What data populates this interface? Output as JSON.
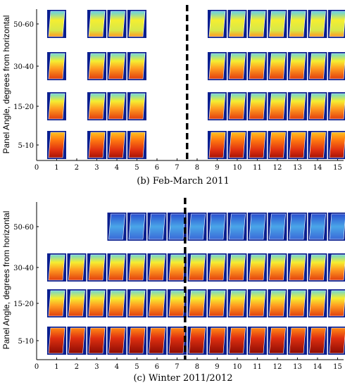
{
  "chart_data": [
    {
      "type": "heatmap",
      "caption": "(b) Feb-March 2011",
      "ylabel": "Panel Angle, degrees from horizontal",
      "rows": [
        "50-60",
        "30-40",
        "15-20",
        "5-10"
      ],
      "x_ticks": [
        0,
        1,
        2,
        3,
        4,
        5,
        6,
        7,
        8,
        9,
        10,
        11,
        12,
        13,
        14,
        15
      ],
      "xlim": [
        0,
        15.3
      ],
      "divider_x": 7.5,
      "columns": [
        {
          "x": 1,
          "rows": [
            "50-60",
            "30-40",
            "15-20",
            "5-10"
          ]
        },
        {
          "x": 3,
          "rows": [
            "50-60",
            "30-40",
            "15-20",
            "5-10"
          ]
        },
        {
          "x": 4,
          "rows": [
            "50-60",
            "30-40",
            "15-20",
            "5-10"
          ]
        },
        {
          "x": 5,
          "rows": [
            "50-60",
            "30-40",
            "15-20",
            "5-10"
          ]
        },
        {
          "x": 9,
          "rows": [
            "50-60",
            "30-40",
            "15-20",
            "5-10"
          ]
        },
        {
          "x": 10,
          "rows": [
            "50-60",
            "30-40",
            "15-20",
            "5-10"
          ]
        },
        {
          "x": 11,
          "rows": [
            "50-60",
            "30-40",
            "15-20",
            "5-10"
          ]
        },
        {
          "x": 12,
          "rows": [
            "50-60",
            "30-40",
            "15-20",
            "5-10"
          ]
        },
        {
          "x": 13,
          "rows": [
            "50-60",
            "30-40",
            "15-20",
            "5-10"
          ]
        },
        {
          "x": 14,
          "rows": [
            "50-60",
            "30-40",
            "15-20",
            "5-10"
          ]
        },
        {
          "x": 15,
          "rows": [
            "50-60",
            "30-40",
            "15-20",
            "5-10"
          ]
        }
      ]
    },
    {
      "type": "heatmap",
      "caption": "(c) Winter 2011/2012",
      "ylabel": "Panel Angle, degrees from horizontal",
      "rows": [
        "50-60",
        "30-40",
        "15-20",
        "5-10"
      ],
      "x_ticks": [
        0,
        1,
        2,
        3,
        4,
        5,
        6,
        7,
        8,
        9,
        10,
        11,
        12,
        13,
        14,
        15
      ],
      "xlim": [
        0,
        15.3
      ],
      "divider_x": 7.4,
      "columns": [
        {
          "x": 1,
          "rows": [
            "30-40",
            "15-20",
            "5-10"
          ]
        },
        {
          "x": 2,
          "rows": [
            "30-40",
            "15-20",
            "5-10"
          ]
        },
        {
          "x": 3,
          "rows": [
            "30-40",
            "15-20",
            "5-10"
          ]
        },
        {
          "x": 4,
          "rows": [
            "50-60",
            "30-40",
            "15-20",
            "5-10"
          ]
        },
        {
          "x": 5,
          "rows": [
            "50-60",
            "30-40",
            "15-20",
            "5-10"
          ]
        },
        {
          "x": 6,
          "rows": [
            "50-60",
            "30-40",
            "15-20",
            "5-10"
          ]
        },
        {
          "x": 7,
          "rows": [
            "50-60",
            "30-40",
            "15-20",
            "5-10"
          ]
        },
        {
          "x": 8,
          "rows": [
            "50-60",
            "30-40",
            "15-20",
            "5-10"
          ]
        },
        {
          "x": 9,
          "rows": [
            "50-60",
            "30-40",
            "15-20",
            "5-10"
          ]
        },
        {
          "x": 10,
          "rows": [
            "50-60",
            "30-40",
            "15-20",
            "5-10"
          ]
        },
        {
          "x": 11,
          "rows": [
            "50-60",
            "30-40",
            "15-20",
            "5-10"
          ]
        },
        {
          "x": 12,
          "rows": [
            "50-60",
            "30-40",
            "15-20",
            "5-10"
          ]
        },
        {
          "x": 13,
          "rows": [
            "50-60",
            "30-40",
            "15-20",
            "5-10"
          ]
        },
        {
          "x": 14,
          "rows": [
            "50-60",
            "30-40",
            "15-20",
            "5-10"
          ]
        },
        {
          "x": 15,
          "rows": [
            "50-60",
            "30-40",
            "15-20",
            "5-10"
          ]
        }
      ]
    }
  ],
  "colors": {
    "thumb_background": "#0a1f8f",
    "panel_hot": "#c81e0a",
    "panel_warm": "#ff7a10",
    "panel_mid": "#f5ee30",
    "panel_cool": "#5fd0e6",
    "panel_cold": "#2a4fd0",
    "divider": "#000000"
  }
}
